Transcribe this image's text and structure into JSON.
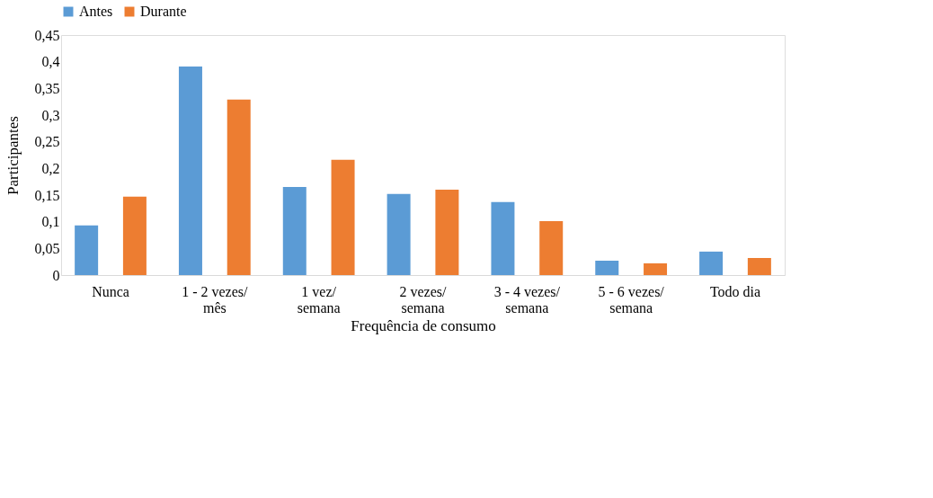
{
  "chart_data": {
    "type": "bar",
    "xlabel": "Frequência de consumo",
    "ylabel": "Participantes",
    "categories": [
      "Nunca",
      "1 - 2 vezes/\nmês",
      "1 vez/\nsemana",
      "2 vezes/\nsemana",
      "3 - 4 vezes/\nsemana",
      "5 - 6 vezes/\nsemana",
      "Todo dia"
    ],
    "series": [
      {
        "name": "Antes",
        "color": "#5b9bd5",
        "values": [
          0.093,
          0.391,
          0.165,
          0.152,
          0.137,
          0.027,
          0.044
        ]
      },
      {
        "name": "Durante",
        "color": "#ed7d31",
        "values": [
          0.147,
          0.329,
          0.216,
          0.16,
          0.101,
          0.022,
          0.032
        ]
      }
    ],
    "ylim": [
      0,
      0.45
    ],
    "yticks": [
      {
        "value": 0,
        "label": "0"
      },
      {
        "value": 0.05,
        "label": "0,05"
      },
      {
        "value": 0.1,
        "label": "0,1"
      },
      {
        "value": 0.15,
        "label": "0,15"
      },
      {
        "value": 0.2,
        "label": "0,2"
      },
      {
        "value": 0.25,
        "label": "0,25"
      },
      {
        "value": 0.3,
        "label": "0,3"
      },
      {
        "value": 0.35,
        "label": "0,35"
      },
      {
        "value": 0.4,
        "label": "0,4"
      },
      {
        "value": 0.45,
        "label": "0,45"
      }
    ],
    "grid": false,
    "legend": "top"
  }
}
